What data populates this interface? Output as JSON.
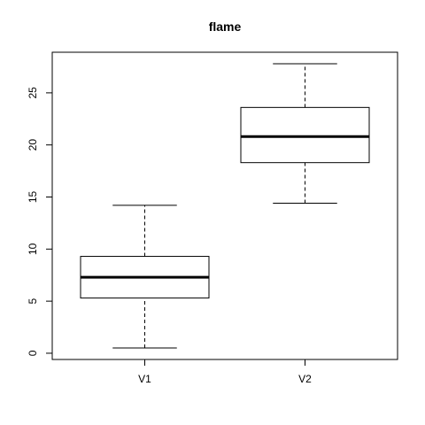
{
  "chart_data": {
    "type": "boxplot",
    "title": "flame",
    "xlabel": "",
    "ylabel": "",
    "ylim": [
      -0.6,
      28.9
    ],
    "yticks": [
      0,
      5,
      10,
      15,
      20,
      25
    ],
    "categories": [
      "V1",
      "V2"
    ],
    "boxes": [
      {
        "name": "V1",
        "min": 0.5,
        "q1": 5.3,
        "median": 7.3,
        "q3": 9.3,
        "max": 14.2
      },
      {
        "name": "V2",
        "min": 14.4,
        "q1": 18.3,
        "median": 20.8,
        "q3": 23.6,
        "max": 27.8
      }
    ],
    "grid": false,
    "colors": {
      "box_fill": "#ffffff",
      "stroke": "#000000"
    }
  }
}
